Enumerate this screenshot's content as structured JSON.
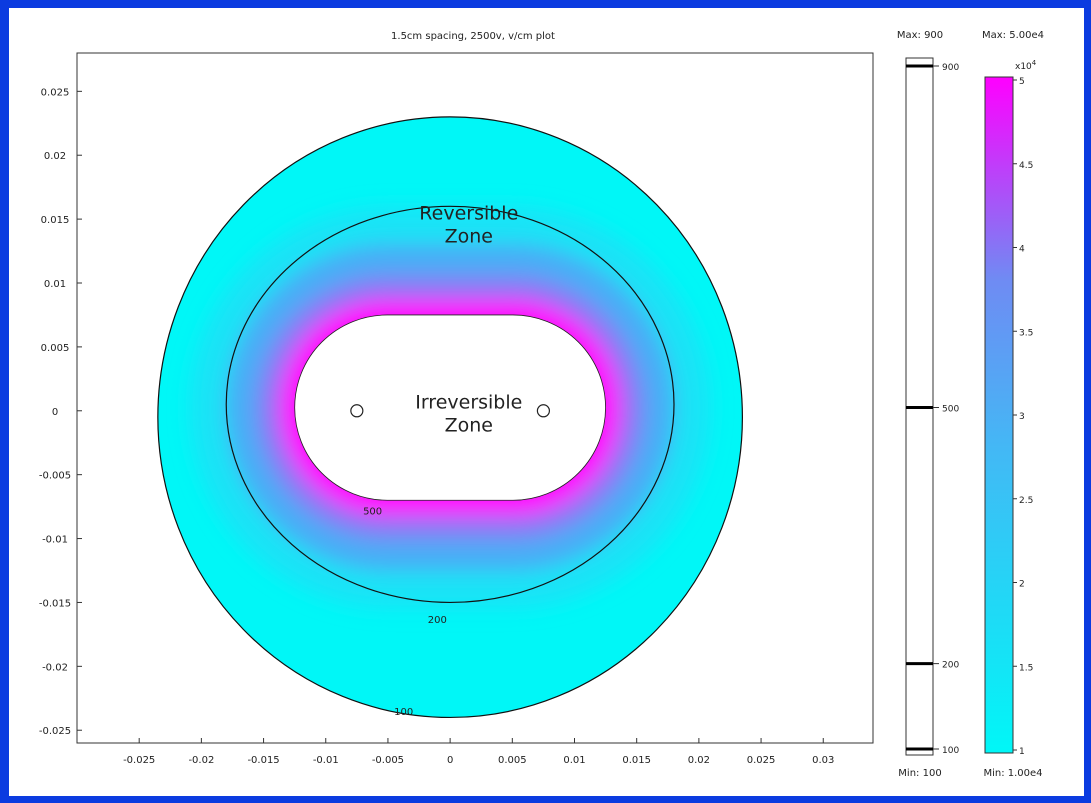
{
  "chart_data": {
    "type": "heatmap",
    "title": "1.5cm spacing, 2500v, v/cm plot",
    "x_ticks": [
      -0.025,
      -0.02,
      -0.015,
      -0.01,
      -0.005,
      0,
      0.005,
      0.01,
      0.015,
      0.02,
      0.025,
      0.03
    ],
    "x_tick_labels": [
      "-0.025",
      "-0.02",
      "-0.015",
      "-0.01",
      "-0.005",
      "0",
      "0.005",
      "0.01",
      "0.015",
      "0.02",
      "0.025",
      "0.03"
    ],
    "y_ticks": [
      0.025,
      0.02,
      0.015,
      0.01,
      0.005,
      0,
      -0.005,
      -0.01,
      -0.015,
      -0.02,
      -0.025
    ],
    "y_tick_labels": [
      "0.025",
      "0.02",
      "0.015",
      "0.01",
      "0.005",
      "0",
      "-0.005",
      "-0.01",
      "-0.015",
      "-0.02",
      "-0.025"
    ],
    "xlim": [
      -0.03,
      0.034
    ],
    "ylim": [
      -0.026,
      0.028
    ],
    "grid": false,
    "electrodes": [
      {
        "x": -0.0075,
        "y": 0
      },
      {
        "x": 0.0075,
        "y": 0
      }
    ],
    "outer_boundary": {
      "center": [
        0,
        -0.0005
      ],
      "rx": 0.0235,
      "ry": 0.0235
    },
    "contours": [
      {
        "level": 100,
        "label": "100",
        "shape": "ellipse",
        "center": [
          0,
          -0.0005
        ],
        "rx": 0.0235,
        "ry": 0.0235,
        "label_at": [
          -0.0045,
          -0.0235
        ]
      },
      {
        "level": 200,
        "label": "200",
        "shape": "ellipse",
        "center": [
          0,
          0.0005
        ],
        "rx": 0.018,
        "ry": 0.0155,
        "label_at": [
          -0.0018,
          -0.0163
        ]
      },
      {
        "level": 500,
        "label": "500",
        "shape": "stadium",
        "x_range": [
          -0.0125,
          0.0125
        ],
        "y_range": [
          -0.007,
          0.0075
        ],
        "label_at": [
          -0.007,
          -0.0078
        ]
      }
    ],
    "zones": [
      {
        "lines": [
          "Reversible",
          "Zone"
        ],
        "at": [
          0.0015,
          0.0145
        ]
      },
      {
        "lines": [
          "Irreversible",
          "Zone"
        ],
        "at": [
          0.0015,
          -0.0003
        ]
      }
    ],
    "contour_colorbar": {
      "max_label": "Max: 900",
      "min_label": "Min: 100",
      "range": [
        100,
        900
      ],
      "levels": [
        100,
        200,
        500,
        900
      ],
      "level_labels": [
        "100",
        "200",
        "500",
        "900"
      ]
    },
    "field_colorbar": {
      "max_label": "Max: 5.00e4",
      "min_label": "Min: 1.00e4",
      "exponent_label": "x10",
      "exponent_power": "4",
      "range": [
        1,
        5
      ],
      "ticks": [
        1,
        1.5,
        2,
        2.5,
        3,
        3.5,
        4,
        4.5,
        5
      ],
      "tick_labels": [
        "1",
        "1.5",
        "2",
        "2.5",
        "3",
        "3.5",
        "4",
        "4.5",
        "5"
      ],
      "color_low": "#00f7f7",
      "color_mid": "#5b9af5",
      "color_high": "#ff00ff"
    }
  }
}
